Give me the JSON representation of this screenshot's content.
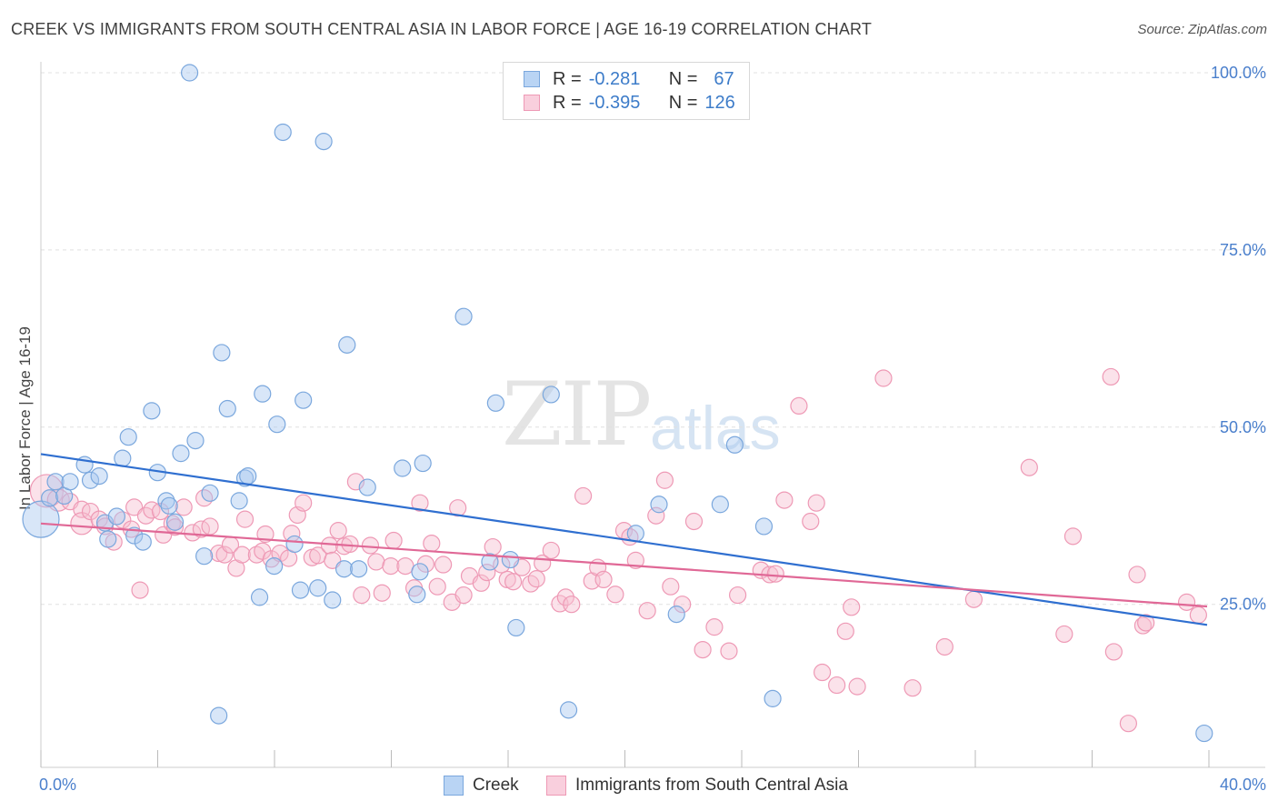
{
  "title": "CREEK VS IMMIGRANTS FROM SOUTH CENTRAL ASIA IN LABOR FORCE | AGE 16-19 CORRELATION CHART",
  "source": "Source: ZipAtlas.com",
  "watermark": {
    "zip": "ZIP",
    "atlas": "atlas"
  },
  "legend": {
    "creek": {
      "r_label": "R =",
      "r_value": "-0.281",
      "n_label": "N =",
      "n_value": "67"
    },
    "immigrants": {
      "r_label": "R =",
      "r_value": "-0.395",
      "n_label": "N =",
      "n_value": "126"
    }
  },
  "bottom_legend": {
    "creek": "Creek",
    "immigrants": "Immigrants from South Central Asia"
  },
  "colors": {
    "creek_fill": "#a9c8ef",
    "creek_stroke": "#7aa7dd",
    "creek_line": "#2f6fd0",
    "imm_fill": "#f6bfd1",
    "imm_stroke": "#ee99b5",
    "imm_line": "#e06896",
    "axis_text": "#4a7fcc",
    "grid": "#e0e0e0"
  },
  "chart_data": {
    "type": "scatter",
    "title": "CREEK VS IMMIGRANTS FROM SOUTH CENTRAL ASIA IN LABOR FORCE | AGE 16-19 CORRELATION CHART",
    "xlabel": "",
    "ylabel": "In Labor Force | Age 16-19",
    "xlim": [
      0,
      40
    ],
    "ylim": [
      2,
      100
    ],
    "x_tick_labels": [
      "0.0%",
      "40.0%"
    ],
    "y_ticks": [
      25,
      50,
      75,
      100
    ],
    "y_tick_labels": [
      "25.0%",
      "50.0%",
      "75.0%",
      "100.0%"
    ],
    "series": [
      {
        "name": "Creek",
        "trend": [
          [
            0,
            46.2
          ],
          [
            40,
            22.1
          ]
        ],
        "points": [
          [
            0.0,
            37.0,
            20
          ],
          [
            0.3,
            40.0,
            9
          ],
          [
            0.5,
            42.3,
            9
          ],
          [
            0.8,
            40.3,
            9
          ],
          [
            1.0,
            42.3,
            9
          ],
          [
            1.5,
            44.7,
            9
          ],
          [
            1.7,
            42.5,
            9
          ],
          [
            2.0,
            43.1,
            9
          ],
          [
            2.2,
            36.5,
            9
          ],
          [
            2.3,
            34.2,
            9
          ],
          [
            2.6,
            37.4,
            9
          ],
          [
            2.8,
            45.6,
            9
          ],
          [
            3.0,
            48.6,
            9
          ],
          [
            3.2,
            34.7,
            9
          ],
          [
            3.5,
            33.8,
            9
          ],
          [
            3.8,
            52.3,
            9
          ],
          [
            4.0,
            43.6,
            9
          ],
          [
            4.3,
            39.6,
            9
          ],
          [
            4.4,
            38.9,
            9
          ],
          [
            4.6,
            36.6,
            9
          ],
          [
            4.8,
            46.3,
            9
          ],
          [
            5.1,
            100.0,
            9
          ],
          [
            5.3,
            48.1,
            9
          ],
          [
            5.6,
            31.8,
            9
          ],
          [
            5.8,
            40.7,
            9
          ],
          [
            6.1,
            9.3,
            9
          ],
          [
            6.2,
            60.5,
            9
          ],
          [
            6.4,
            52.6,
            9
          ],
          [
            6.8,
            39.6,
            9
          ],
          [
            7.0,
            42.8,
            9
          ],
          [
            7.1,
            43.1,
            9
          ],
          [
            7.5,
            26.0,
            9
          ],
          [
            7.6,
            54.7,
            9
          ],
          [
            8.0,
            30.4,
            9
          ],
          [
            8.1,
            50.4,
            9
          ],
          [
            8.3,
            91.6,
            9
          ],
          [
            8.7,
            33.5,
            9
          ],
          [
            8.9,
            27.0,
            9
          ],
          [
            9.0,
            53.8,
            9
          ],
          [
            9.5,
            27.3,
            9
          ],
          [
            9.7,
            90.3,
            9
          ],
          [
            10.0,
            25.6,
            9
          ],
          [
            10.5,
            61.6,
            9
          ],
          [
            10.4,
            30.0,
            9
          ],
          [
            10.9,
            30.0,
            9
          ],
          [
            11.2,
            41.5,
            9
          ],
          [
            12.4,
            44.2,
            9
          ],
          [
            12.9,
            26.4,
            9
          ],
          [
            13.1,
            44.9,
            9
          ],
          [
            13.0,
            29.6,
            9
          ],
          [
            14.5,
            65.6,
            9
          ],
          [
            15.4,
            31.0,
            9
          ],
          [
            15.6,
            53.4,
            9
          ],
          [
            16.1,
            31.3,
            9
          ],
          [
            16.3,
            21.7,
            9
          ],
          [
            17.5,
            54.6,
            9
          ],
          [
            18.1,
            10.1,
            9
          ],
          [
            20.4,
            35.0,
            9
          ],
          [
            21.2,
            39.1,
            9
          ],
          [
            21.8,
            23.6,
            9
          ],
          [
            23.3,
            39.1,
            9
          ],
          [
            23.8,
            47.5,
            9
          ],
          [
            24.8,
            36.0,
            9
          ],
          [
            25.1,
            11.7,
            9
          ],
          [
            39.9,
            6.8,
            9
          ]
        ]
      },
      {
        "name": "Immigrants from South Central Asia",
        "trend": [
          [
            0,
            36.4
          ],
          [
            40,
            24.7
          ]
        ],
        "points": [
          [
            0.2,
            41.0,
            18
          ],
          [
            0.6,
            39.7,
            12
          ],
          [
            1.0,
            39.5,
            9
          ],
          [
            1.4,
            38.4,
            9
          ],
          [
            1.4,
            36.4,
            12
          ],
          [
            1.7,
            38.1,
            9
          ],
          [
            2.0,
            37.0,
            9
          ],
          [
            2.2,
            36.0,
            9
          ],
          [
            2.5,
            33.8,
            9
          ],
          [
            2.8,
            36.9,
            9
          ],
          [
            3.1,
            35.6,
            9
          ],
          [
            3.2,
            38.7,
            9
          ],
          [
            3.4,
            27.0,
            9
          ],
          [
            3.6,
            37.5,
            9
          ],
          [
            3.8,
            38.3,
            9
          ],
          [
            4.1,
            38.1,
            9
          ],
          [
            4.2,
            34.8,
            9
          ],
          [
            4.5,
            36.4,
            9
          ],
          [
            4.6,
            35.9,
            9
          ],
          [
            4.9,
            38.7,
            9
          ],
          [
            5.2,
            35.1,
            9
          ],
          [
            5.5,
            35.6,
            9
          ],
          [
            5.6,
            40.0,
            9
          ],
          [
            5.8,
            36.0,
            9
          ],
          [
            6.1,
            32.2,
            9
          ],
          [
            6.3,
            32.0,
            9
          ],
          [
            6.5,
            33.4,
            9
          ],
          [
            6.7,
            30.1,
            9
          ],
          [
            6.9,
            32.0,
            9
          ],
          [
            7.0,
            37.0,
            9
          ],
          [
            7.4,
            32.0,
            9
          ],
          [
            7.6,
            32.5,
            9
          ],
          [
            7.7,
            34.9,
            9
          ],
          [
            7.9,
            31.4,
            9
          ],
          [
            8.2,
            32.2,
            9
          ],
          [
            8.5,
            31.5,
            9
          ],
          [
            8.6,
            35.0,
            9
          ],
          [
            8.8,
            37.6,
            9
          ],
          [
            9.0,
            39.3,
            9
          ],
          [
            9.3,
            31.6,
            9
          ],
          [
            9.5,
            31.9,
            9
          ],
          [
            9.9,
            33.3,
            9
          ],
          [
            10.0,
            31.2,
            9
          ],
          [
            10.2,
            35.4,
            9
          ],
          [
            10.4,
            33.2,
            9
          ],
          [
            10.6,
            33.5,
            9
          ],
          [
            10.8,
            42.3,
            9
          ],
          [
            11.0,
            26.3,
            9
          ],
          [
            11.3,
            33.3,
            9
          ],
          [
            11.5,
            31.0,
            9
          ],
          [
            11.7,
            26.6,
            9
          ],
          [
            12.0,
            30.4,
            9
          ],
          [
            12.1,
            34.0,
            9
          ],
          [
            12.5,
            30.4,
            9
          ],
          [
            12.8,
            27.3,
            9
          ],
          [
            13.0,
            39.3,
            9
          ],
          [
            13.2,
            30.7,
            9
          ],
          [
            13.4,
            33.6,
            9
          ],
          [
            13.6,
            27.5,
            9
          ],
          [
            13.8,
            30.6,
            9
          ],
          [
            14.1,
            25.3,
            9
          ],
          [
            14.3,
            38.6,
            9
          ],
          [
            14.5,
            26.3,
            9
          ],
          [
            14.7,
            29.0,
            9
          ],
          [
            15.1,
            28.0,
            9
          ],
          [
            15.3,
            29.5,
            9
          ],
          [
            15.5,
            33.1,
            9
          ],
          [
            15.8,
            30.6,
            9
          ],
          [
            16.0,
            28.5,
            9
          ],
          [
            16.2,
            28.2,
            9
          ],
          [
            16.5,
            30.2,
            9
          ],
          [
            16.8,
            27.9,
            9
          ],
          [
            17.0,
            28.6,
            9
          ],
          [
            17.2,
            30.8,
            9
          ],
          [
            17.5,
            32.6,
            9
          ],
          [
            17.8,
            25.1,
            9
          ],
          [
            18.0,
            26.0,
            9
          ],
          [
            18.2,
            25.0,
            9
          ],
          [
            18.6,
            40.3,
            9
          ],
          [
            18.9,
            28.3,
            9
          ],
          [
            19.1,
            30.2,
            9
          ],
          [
            19.3,
            28.5,
            9
          ],
          [
            19.7,
            26.4,
            9
          ],
          [
            20.0,
            35.4,
            9
          ],
          [
            20.2,
            34.5,
            9
          ],
          [
            20.4,
            31.2,
            9
          ],
          [
            20.8,
            24.1,
            9
          ],
          [
            21.1,
            37.5,
            9
          ],
          [
            21.4,
            42.5,
            9
          ],
          [
            21.6,
            27.5,
            9
          ],
          [
            22.0,
            25.0,
            9
          ],
          [
            22.4,
            36.7,
            9
          ],
          [
            22.7,
            18.6,
            9
          ],
          [
            23.1,
            21.8,
            9
          ],
          [
            23.6,
            18.4,
            9
          ],
          [
            23.9,
            26.3,
            9
          ],
          [
            24.7,
            29.8,
            9
          ],
          [
            25.0,
            29.2,
            9
          ],
          [
            25.2,
            29.3,
            9
          ],
          [
            25.5,
            39.7,
            9
          ],
          [
            26.0,
            53.0,
            9
          ],
          [
            26.4,
            36.7,
            9
          ],
          [
            26.6,
            39.3,
            9
          ],
          [
            26.8,
            15.4,
            9
          ],
          [
            27.3,
            13.6,
            9
          ],
          [
            27.6,
            21.2,
            9
          ],
          [
            27.8,
            24.6,
            9
          ],
          [
            28.0,
            13.4,
            9
          ],
          [
            28.9,
            56.9,
            9
          ],
          [
            29.9,
            13.2,
            9
          ],
          [
            31.0,
            19.0,
            9
          ],
          [
            32.0,
            25.7,
            9
          ],
          [
            33.9,
            44.3,
            9
          ],
          [
            35.1,
            20.8,
            9
          ],
          [
            35.4,
            34.6,
            9
          ],
          [
            36.7,
            57.1,
            9
          ],
          [
            36.8,
            18.3,
            9
          ],
          [
            37.3,
            8.2,
            9
          ],
          [
            37.6,
            29.2,
            9
          ],
          [
            37.8,
            22.0,
            9
          ],
          [
            37.9,
            22.4,
            9
          ],
          [
            39.3,
            25.3,
            9
          ],
          [
            39.7,
            23.5,
            9
          ]
        ]
      }
    ]
  }
}
